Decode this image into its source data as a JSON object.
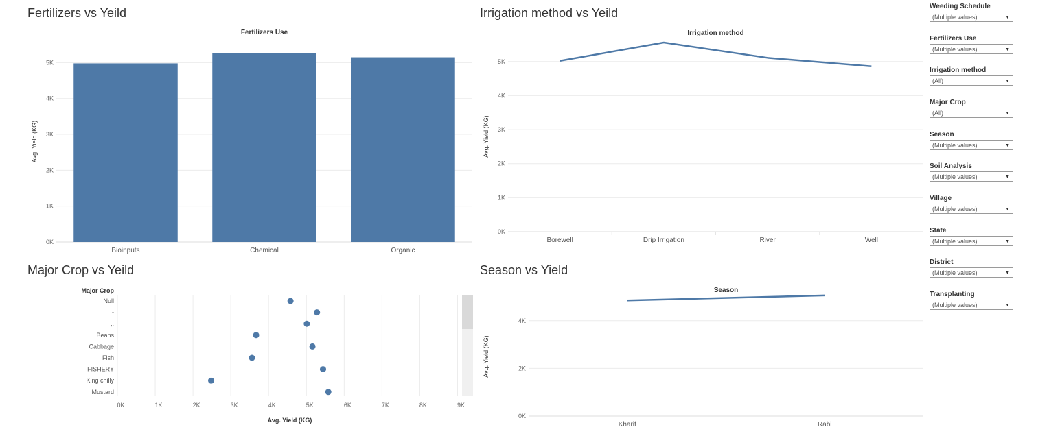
{
  "panels": {
    "fertilizers": {
      "title": "Fertilizers vs Yeild",
      "chart_data": {
        "type": "bar",
        "title": "Fertilizers Use",
        "ylabel": "Avg. Yield (KG)",
        "categories": [
          "Bioinputs",
          "Chemical",
          "Organic"
        ],
        "values": [
          4980,
          5260,
          5150
        ],
        "ylim": [
          0,
          5600
        ],
        "yticks": [
          0,
          1000,
          2000,
          3000,
          4000,
          5000
        ],
        "ytick_labels": [
          "0K",
          "1K",
          "2K",
          "3K",
          "4K",
          "5K"
        ],
        "color": "#4e79a7",
        "grid": true
      }
    },
    "irrigation": {
      "title": "Irrigation method vs Yeild",
      "chart_data": {
        "type": "line",
        "title": "Irrigation method",
        "ylabel": "Avg. Yield (KG)",
        "categories": [
          "Borewell",
          "Drip Irrigation",
          "River",
          "Well"
        ],
        "values": [
          5020,
          5560,
          5110,
          4860
        ],
        "ylim": [
          0,
          5600
        ],
        "yticks": [
          0,
          1000,
          2000,
          3000,
          4000,
          5000
        ],
        "ytick_labels": [
          "0K",
          "1K",
          "2K",
          "3K",
          "4K",
          "5K"
        ],
        "color": "#4e79a7",
        "grid": true
      }
    },
    "major_crop": {
      "title": "Major Crop vs Yeild",
      "chart_data": {
        "type": "scatter",
        "row_header": "Major Crop",
        "xlabel": "Avg. Yield (KG)",
        "categories": [
          "Null",
          "-",
          ",,",
          "Beans",
          "Cabbage",
          "Fish",
          "FISHERY",
          "King chilly",
          "Mustard"
        ],
        "values": [
          4580,
          5280,
          5010,
          3670,
          5160,
          3560,
          5440,
          2480,
          5580
        ],
        "xlim": [
          0,
          9100
        ],
        "xticks": [
          0,
          1000,
          2000,
          3000,
          4000,
          5000,
          6000,
          7000,
          8000,
          9000
        ],
        "xtick_labels": [
          "0K",
          "1K",
          "2K",
          "3K",
          "4K",
          "5K",
          "6K",
          "7K",
          "8K",
          "9K"
        ],
        "color": "#4e79a7",
        "grid": true
      }
    },
    "season": {
      "title": "Season vs Yield",
      "chart_data": {
        "type": "line",
        "title": "Season",
        "ylabel": "Avg. Yield (KG)",
        "categories": [
          "Kharif",
          "Rabi"
        ],
        "values": [
          4850,
          5060
        ],
        "ylim": [
          0,
          5000
        ],
        "yticks": [
          0,
          2000,
          4000
        ],
        "ytick_labels": [
          "0K",
          "2K",
          "4K"
        ],
        "color": "#4e79a7",
        "grid": true
      }
    }
  },
  "filters": [
    {
      "label": "Weeding Schedule",
      "value": "(Multiple values)"
    },
    {
      "label": "Fertilizers Use",
      "value": "(Multiple values)"
    },
    {
      "label": "Irrigation method",
      "value": "(All)"
    },
    {
      "label": "Major Crop",
      "value": "(All)"
    },
    {
      "label": "Season",
      "value": "(Multiple values)"
    },
    {
      "label": "Soil Analysis",
      "value": "(Multiple values)"
    },
    {
      "label": "Village",
      "value": "(Multiple values)"
    },
    {
      "label": "State",
      "value": "(Multiple values)"
    },
    {
      "label": "District",
      "value": "(Multiple values)"
    },
    {
      "label": "Transplanting",
      "value": "(Multiple values)"
    }
  ],
  "icons": {
    "dropdown": "chevron-down-icon"
  }
}
